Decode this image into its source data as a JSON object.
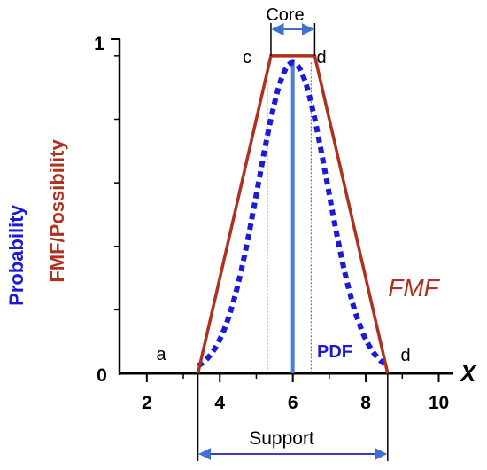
{
  "chart_data": {
    "type": "line",
    "title": "",
    "xlabel": "X",
    "ylabel_possibility": "FMF/Possibility",
    "ylabel_probability": "Probability",
    "xlim": [
      1.3,
      10.4
    ],
    "ylim": [
      0,
      1.0
    ],
    "x_ticks": [
      2,
      4,
      6,
      8,
      10
    ],
    "x_tick_labels": [
      "2",
      "4",
      "6",
      "8",
      "10"
    ],
    "y_tick_labels": [
      "0",
      "1"
    ],
    "series": [
      {
        "name": "FMF",
        "style": "solid",
        "color": "#b03020",
        "x": [
          3.4,
          5.4,
          6.6,
          8.6
        ],
        "y": [
          0.0,
          0.95,
          0.95,
          0.0
        ]
      },
      {
        "name": "PDF",
        "style": "dotted",
        "color": "#1a1ad8",
        "mean": 6.0,
        "sigma": 0.95,
        "support": [
          3.4,
          8.6
        ],
        "peak": 0.93
      }
    ],
    "mean_line_x": 6.0,
    "core_guide_x": [
      5.3,
      6.5
    ],
    "annotations": {
      "a": "a",
      "c": "c",
      "d_top": "d",
      "d_bottom": "d",
      "core": "Core",
      "support": "Support",
      "fmf": "FMF",
      "pdf": "PDF"
    },
    "core_range": [
      5.4,
      6.6
    ],
    "support_range": [
      3.4,
      8.6
    ],
    "grid": false
  },
  "colors": {
    "fmf": "#b03020",
    "pdf": "#1a1ad8",
    "axis": "#000000",
    "mean": "#4a7fd0",
    "core_arrow": "#5a86d0",
    "support_arrow": "#3a3ad0"
  }
}
